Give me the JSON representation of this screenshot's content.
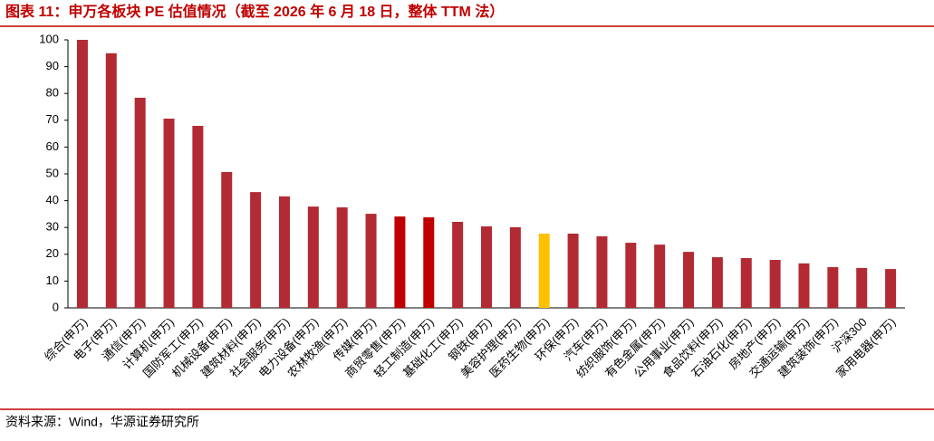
{
  "chart_data": {
    "type": "bar",
    "title": "图表 11：申万各板块 PE 估值情况（截至 2026 年 6 月 18 日，整体 TTM 法）",
    "source": "资料来源：Wind，华源证券研究所",
    "categories": [
      "综合(申万)",
      "电子(申万)",
      "通信(申万)",
      "计算机(申万)",
      "国防军工(申万)",
      "机械设备(申万)",
      "建筑材料(申万)",
      "社会服务(申万)",
      "电力设备(申万)",
      "农林牧渔(申万)",
      "传媒(申万)",
      "商贸零售(申万)",
      "轻工制造(申万)",
      "基础化工(申万)",
      "钢铁(申万)",
      "美容护理(申万)",
      "医药生物(申万)",
      "环保(申万)",
      "汽车(申万)",
      "纺织服饰(申万)",
      "有色金属(申万)",
      "公用事业(申万)",
      "食品饮料(申万)",
      "石油石化(申万)",
      "房地产(申万)",
      "交通运输(申万)",
      "建筑装饰(申万)",
      "沪深300",
      "家用电器(申万)"
    ],
    "values": [
      100,
      95,
      78.4,
      70.6,
      67.9,
      50.7,
      43.2,
      41.6,
      37.8,
      37.5,
      35.1,
      34.1,
      33.8,
      32.1,
      30.4,
      30.1,
      27.7,
      27.7,
      26.7,
      24.3,
      23.6,
      20.9,
      18.9,
      18.6,
      17.9,
      16.6,
      15.2,
      14.9,
      14.5
    ],
    "colors": [
      "#b22a33",
      "#b22a33",
      "#b22a33",
      "#b22a33",
      "#b22a33",
      "#b22a33",
      "#b22a33",
      "#b22a33",
      "#b22a33",
      "#b22a33",
      "#b22a33",
      "#c00000",
      "#c00000",
      "#b22a33",
      "#b22a33",
      "#b22a33",
      "#ffc000",
      "#b22a33",
      "#b22a33",
      "#b22a33",
      "#b22a33",
      "#b22a33",
      "#b22a33",
      "#b22a33",
      "#b22a33",
      "#b22a33",
      "#b22a33",
      "#b22a33",
      "#b22a33"
    ],
    "ylim": [
      0,
      100
    ],
    "yticks": [
      0,
      10,
      20,
      30,
      40,
      50,
      60,
      70,
      80,
      90,
      100
    ],
    "grid": false
  }
}
